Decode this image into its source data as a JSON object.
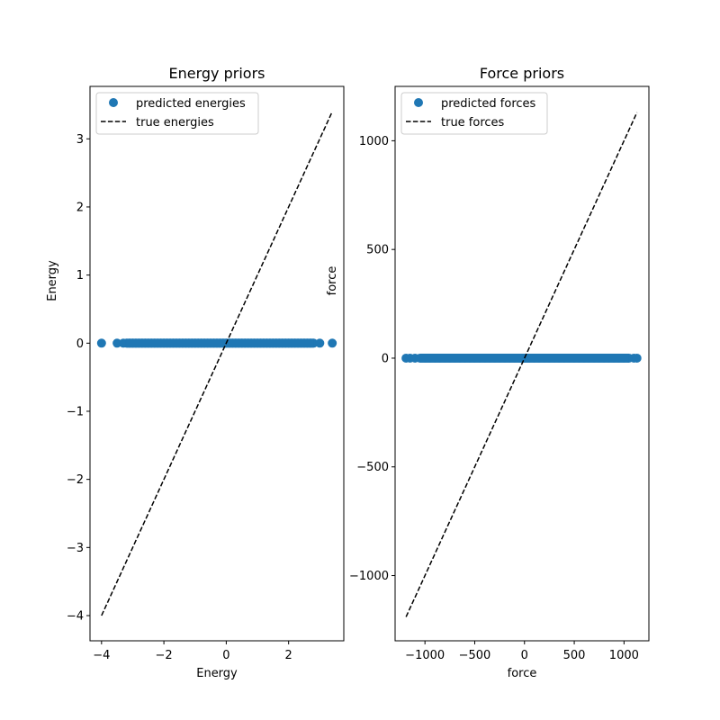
{
  "chart_data": [
    {
      "type": "scatter",
      "title": "Energy priors",
      "xlabel": "Energy",
      "ylabel": "Energy",
      "xlim": [
        -4.37,
        3.77
      ],
      "ylim": [
        -4.37,
        3.77
      ],
      "xticks": [
        -4,
        -2,
        0,
        2
      ],
      "yticks": [
        -4,
        -3,
        -2,
        -1,
        0,
        1,
        2,
        3
      ],
      "xtick_labels": [
        "−4",
        "−2",
        "0",
        "2"
      ],
      "ytick_labels": [
        "−4",
        "−3",
        "−2",
        "−1",
        "0",
        "1",
        "2",
        "3"
      ],
      "legend": {
        "position": "upper-left",
        "entries": [
          "predicted energies",
          "true energies"
        ]
      },
      "series": [
        {
          "name": "predicted energies",
          "kind": "scatter",
          "color": "#1f77b4",
          "x": [
            -4.0,
            -3.5,
            -3.3,
            -3.2,
            -3.1,
            -3.0,
            -2.9,
            -2.8,
            -2.7,
            -2.6,
            -2.5,
            -2.4,
            -2.3,
            -2.2,
            -2.1,
            -2.0,
            -1.9,
            -1.8,
            -1.7,
            -1.6,
            -1.5,
            -1.4,
            -1.3,
            -1.2,
            -1.1,
            -1.0,
            -0.9,
            -0.8,
            -0.7,
            -0.6,
            -0.5,
            -0.4,
            -0.3,
            -0.2,
            -0.1,
            0.0,
            0.1,
            0.2,
            0.3,
            0.4,
            0.5,
            0.6,
            0.7,
            0.8,
            0.9,
            1.0,
            1.1,
            1.2,
            1.3,
            1.4,
            1.5,
            1.6,
            1.7,
            1.8,
            1.9,
            2.0,
            2.1,
            2.2,
            2.3,
            2.4,
            2.5,
            2.6,
            2.7,
            2.8,
            3.0,
            3.4
          ],
          "y": [
            0,
            0,
            0,
            0,
            0,
            0,
            0,
            0,
            0,
            0,
            0,
            0,
            0,
            0,
            0,
            0,
            0,
            0,
            0,
            0,
            0,
            0,
            0,
            0,
            0,
            0,
            0,
            0,
            0,
            0,
            0,
            0,
            0,
            0,
            0,
            0,
            0,
            0,
            0,
            0,
            0,
            0,
            0,
            0,
            0,
            0,
            0,
            0,
            0,
            0,
            0,
            0,
            0,
            0,
            0,
            0,
            0,
            0,
            0,
            0,
            0,
            0,
            0,
            0,
            0,
            0
          ]
        },
        {
          "name": "true energies",
          "kind": "line",
          "style": "dashed",
          "color": "#000000",
          "x": [
            -4.0,
            3.4
          ],
          "y": [
            -4.0,
            3.4
          ]
        }
      ]
    },
    {
      "type": "scatter",
      "title": "Force priors",
      "xlabel": "force",
      "ylabel": "force",
      "xlim": [
        -1300,
        1250
      ],
      "ylim": [
        -1300,
        1250
      ],
      "xticks": [
        -1000,
        -500,
        0,
        500,
        1000
      ],
      "yticks": [
        -1000,
        -500,
        0,
        500,
        1000
      ],
      "xtick_labels": [
        "−1000",
        "−500",
        "0",
        "500",
        "1000"
      ],
      "ytick_labels": [
        "−1000",
        "−500",
        "0",
        "500",
        "1000"
      ],
      "legend": {
        "position": "upper-left",
        "entries": [
          "predicted forces",
          "true forces"
        ]
      },
      "series": [
        {
          "name": "predicted forces",
          "kind": "scatter",
          "color": "#1f77b4",
          "x": [
            -1190,
            -1150,
            -1100,
            -1050,
            -1000,
            -950,
            -900,
            -850,
            -800,
            -750,
            -700,
            -650,
            -600,
            -550,
            -500,
            -450,
            -400,
            -350,
            -300,
            -250,
            -200,
            -150,
            -100,
            -50,
            0,
            50,
            100,
            150,
            200,
            250,
            300,
            350,
            400,
            450,
            500,
            550,
            600,
            650,
            700,
            750,
            800,
            850,
            900,
            950,
            1000,
            1050,
            1100,
            1130
          ],
          "y": [
            0,
            0,
            0,
            0,
            0,
            0,
            0,
            0,
            0,
            0,
            0,
            0,
            0,
            0,
            0,
            0,
            0,
            0,
            0,
            0,
            0,
            0,
            0,
            0,
            0,
            0,
            0,
            0,
            0,
            0,
            0,
            0,
            0,
            0,
            0,
            0,
            0,
            0,
            0,
            0,
            0,
            0,
            0,
            0,
            0,
            0,
            0,
            0
          ]
        },
        {
          "name": "true forces",
          "kind": "line",
          "style": "dashed",
          "color": "#000000",
          "x": [
            -1190,
            1130
          ],
          "y": [
            -1190,
            1130
          ]
        }
      ]
    }
  ]
}
